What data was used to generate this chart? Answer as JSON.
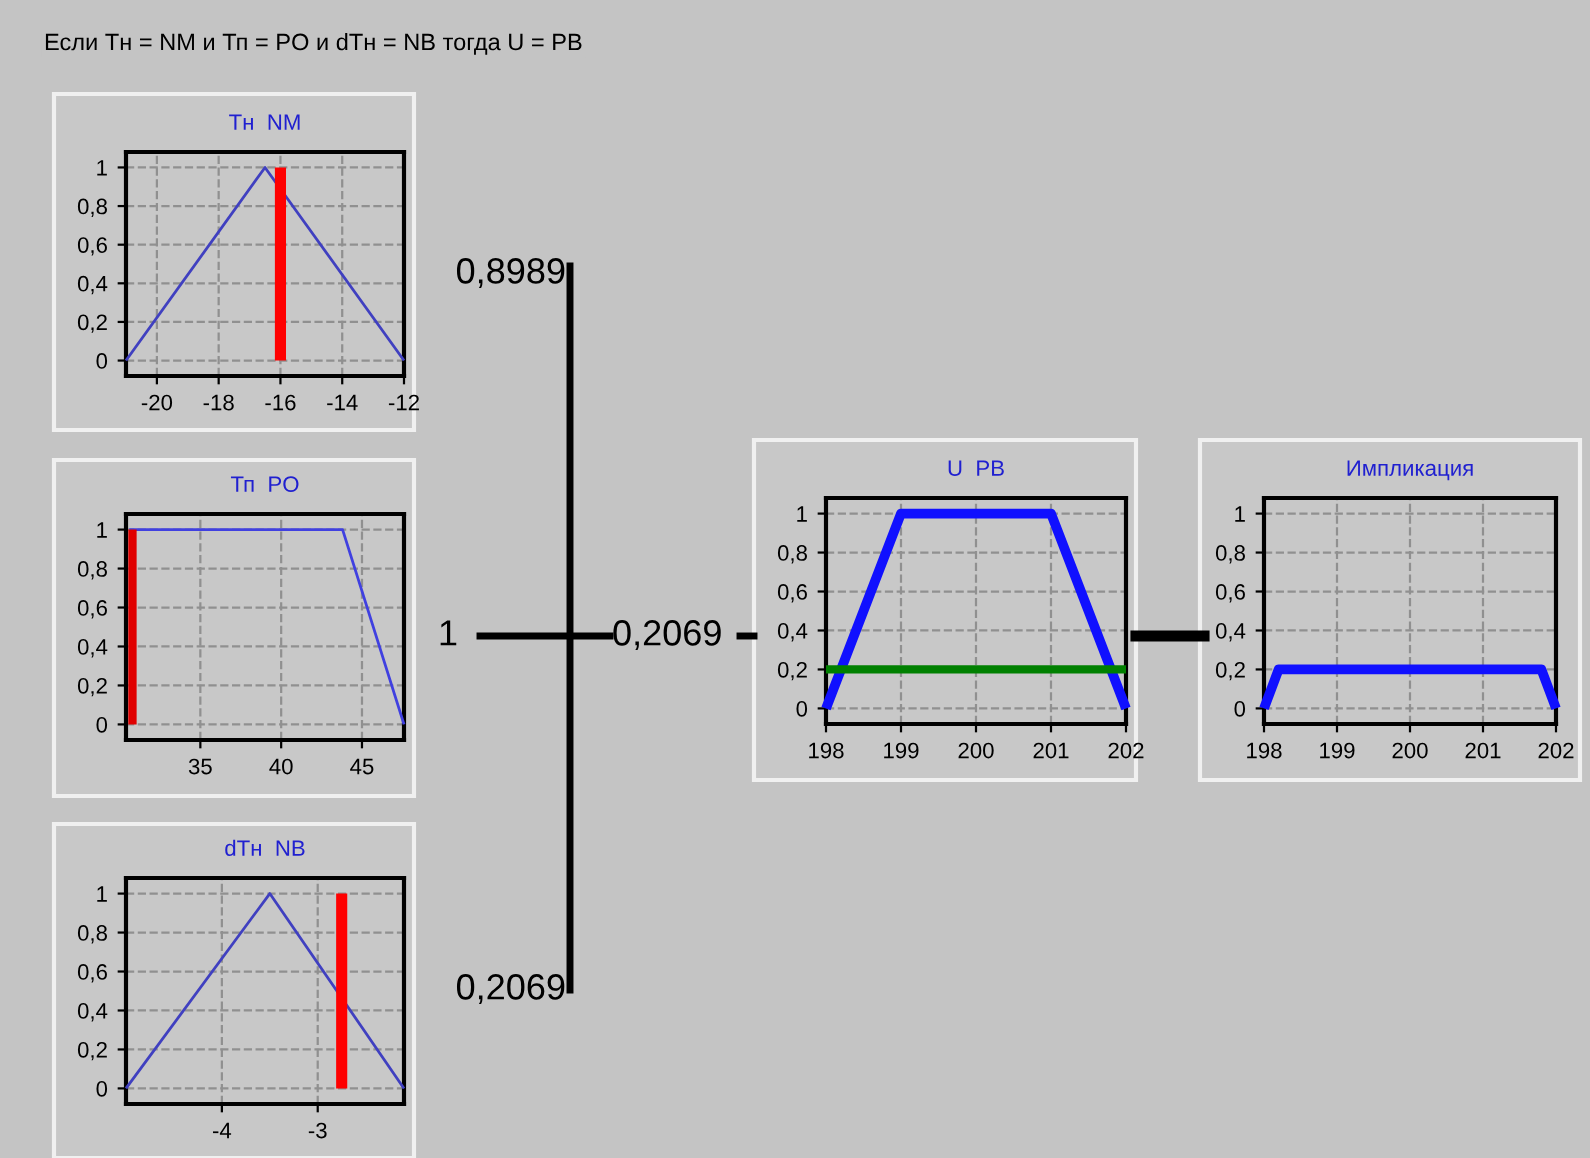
{
  "chart_data": [
    {
      "type": "other",
      "title": "Если Тн = NM и Тп = PO и dTн = NB тогда U = PB",
      "annotations": [
        "0,8989",
        "1",
        "0,2069",
        "0,2069"
      ]
    },
    {
      "type": "line",
      "title": "Тн  NM",
      "xlim": [
        -21,
        -12
      ],
      "xticks": [
        -20,
        -18,
        -16,
        -14,
        -12
      ],
      "ylim": [
        -0.08,
        1.08
      ],
      "yticks": [
        {
          "value": 0,
          "label": "0"
        },
        {
          "value": 0.2,
          "label": "0,2"
        },
        {
          "value": 0.4,
          "label": "0,4"
        },
        {
          "value": 0.6,
          "label": "0,6"
        },
        {
          "value": 0.8,
          "label": "0,8"
        },
        {
          "value": 1,
          "label": "1"
        }
      ],
      "grid": true,
      "series": [
        {
          "color": "#4040c0",
          "x": [
            -21,
            -16.5,
            -12
          ],
          "values": [
            0,
            1,
            0
          ]
        },
        {
          "color": "#ff0000",
          "x": [
            -16,
            -16
          ],
          "values": [
            0,
            1
          ]
        }
      ]
    },
    {
      "type": "line",
      "title": "Тп  PO",
      "xlim": [
        30.4,
        47.6
      ],
      "xticks": [
        35,
        40,
        45
      ],
      "ylim": [
        -0.08,
        1.08
      ],
      "yticks": [
        {
          "value": 0,
          "label": "0"
        },
        {
          "value": 0.2,
          "label": "0,2"
        },
        {
          "value": 0.4,
          "label": "0,4"
        },
        {
          "value": 0.6,
          "label": "0,6"
        },
        {
          "value": 0.8,
          "label": "0,8"
        },
        {
          "value": 1,
          "label": "1"
        }
      ],
      "grid": true,
      "series": [
        {
          "color": "#4040e0",
          "x": [
            30.6,
            43.8,
            47.6
          ],
          "values": [
            1,
            1,
            0
          ]
        },
        {
          "color": "#e00000",
          "x": [
            30.8,
            30.8
          ],
          "values": [
            0,
            1
          ]
        }
      ]
    },
    {
      "type": "line",
      "title": "dTн  NB",
      "xlim": [
        -5,
        -2.1
      ],
      "xticks": [
        -4,
        -3
      ],
      "ylim": [
        -0.08,
        1.08
      ],
      "yticks": [
        {
          "value": 0,
          "label": "0"
        },
        {
          "value": 0.2,
          "label": "0,2"
        },
        {
          "value": 0.4,
          "label": "0,4"
        },
        {
          "value": 0.6,
          "label": "0,6"
        },
        {
          "value": 0.8,
          "label": "0,8"
        },
        {
          "value": 1,
          "label": "1"
        }
      ],
      "grid": true,
      "series": [
        {
          "color": "#4040c0",
          "x": [
            -5,
            -3.5,
            -2.1
          ],
          "values": [
            0,
            1,
            0
          ]
        },
        {
          "color": "#ff0000",
          "x": [
            -2.75,
            -2.75
          ],
          "values": [
            0,
            1
          ]
        }
      ]
    },
    {
      "type": "line",
      "title": "U  PB",
      "xlim": [
        198,
        202
      ],
      "xticks": [
        198,
        199,
        200,
        201,
        202
      ],
      "ylim": [
        -0.08,
        1.08
      ],
      "yticks": [
        {
          "value": 0,
          "label": "0"
        },
        {
          "value": 0.2,
          "label": "0,2"
        },
        {
          "value": 0.4,
          "label": "0,4"
        },
        {
          "value": 0.6,
          "label": "0,6"
        },
        {
          "value": 0.8,
          "label": "0,8"
        },
        {
          "value": 1,
          "label": "1"
        }
      ],
      "grid": true,
      "series": [
        {
          "color": "#1010ff",
          "x": [
            198,
            199,
            201,
            202
          ],
          "values": [
            0,
            1,
            1,
            0
          ]
        },
        {
          "color": "#008000",
          "x": [
            198,
            202
          ],
          "values": [
            0.2,
            0.2
          ]
        }
      ]
    },
    {
      "type": "line",
      "title": "Импликация",
      "xlim": [
        198,
        202
      ],
      "xticks": [
        198,
        199,
        200,
        201,
        202
      ],
      "ylim": [
        -0.08,
        1.08
      ],
      "yticks": [
        {
          "value": 0,
          "label": "0"
        },
        {
          "value": 0.2,
          "label": "0,2"
        },
        {
          "value": 0.4,
          "label": "0,4"
        },
        {
          "value": 0.6,
          "label": "0,6"
        },
        {
          "value": 0.8,
          "label": "0,8"
        },
        {
          "value": 1,
          "label": "1"
        }
      ],
      "grid": true,
      "series": [
        {
          "color": "#1010ff",
          "x": [
            198,
            198.2,
            201.8,
            202
          ],
          "values": [
            0,
            0.2,
            0.2,
            0
          ]
        }
      ]
    }
  ]
}
